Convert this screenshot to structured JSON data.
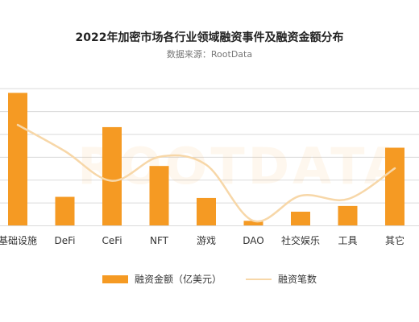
{
  "chart_data": {
    "type": "bar",
    "title": "2022年加密市场各行业领域融资事件及融资金额分布",
    "subtitle": "数据来源：RootData",
    "watermark": "ROOTDATA",
    "categories": [
      "基础设施",
      "DeFi",
      "CeFi",
      "NFT",
      "游戏",
      "DAO",
      "社交娱乐",
      "工具",
      "其它"
    ],
    "series": [
      {
        "name": "融资金额（亿美元）",
        "type": "bar",
        "values": [
          58,
          12.5,
          43,
          26,
          12,
          2,
          6,
          8.5,
          34
        ]
      },
      {
        "name": "融资笔数",
        "type": "line",
        "values": [
          44,
          32.5,
          19.5,
          30,
          26.5,
          2,
          13,
          11.5,
          25
        ]
      }
    ],
    "ylim": [
      0,
      62
    ],
    "grid": true,
    "legend_position": "bottom",
    "colors": {
      "bar": "#F59A23",
      "line": "#F7D7A8",
      "grid": "#DADADA"
    }
  }
}
